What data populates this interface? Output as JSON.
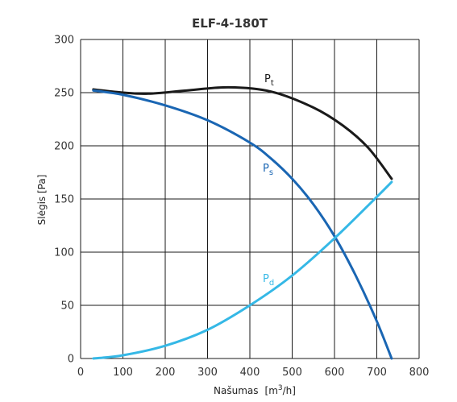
{
  "chart_data": {
    "type": "line",
    "title": "ELF-4-180T",
    "xlabel": {
      "text": "Našumas",
      "unit_prefix": "[m",
      "unit_sup": "3",
      "unit_suffix": "/h]"
    },
    "ylabel": "Slėgis [Pa]",
    "xlim": [
      0,
      800
    ],
    "ylim": [
      0,
      300
    ],
    "xticks": [
      "0",
      "100",
      "200",
      "300",
      "400",
      "500",
      "600",
      "700",
      "800"
    ],
    "yticks": [
      "0",
      "50",
      "100",
      "150",
      "200",
      "250",
      "300"
    ],
    "grid": true,
    "legend": "inline labels",
    "series": [
      {
        "name": "Pt",
        "label_main": "P",
        "label_sub": "t",
        "color": "#1a1a1a",
        "x": [
          30,
          100,
          160,
          250,
          350,
          450,
          550,
          620,
          680,
          735
        ],
        "y": [
          253,
          250,
          249,
          252,
          255,
          251,
          236,
          219,
          198,
          169
        ]
      },
      {
        "name": "Ps",
        "label_main": "P",
        "label_sub": "s",
        "color": "#1a66b3",
        "x": [
          30,
          100,
          200,
          300,
          400,
          450,
          500,
          550,
          600,
          650,
          700,
          735
        ],
        "y": [
          252,
          248,
          238,
          224,
          203,
          188,
          169,
          145,
          115,
          78,
          35,
          0
        ]
      },
      {
        "name": "Pd",
        "label_main": "P",
        "label_sub": "d",
        "color": "#35b8e6",
        "x": [
          30,
          100,
          200,
          300,
          400,
          500,
          600,
          700,
          735
        ],
        "y": [
          0,
          3,
          12,
          27,
          50,
          78,
          113,
          152,
          166
        ]
      }
    ]
  }
}
